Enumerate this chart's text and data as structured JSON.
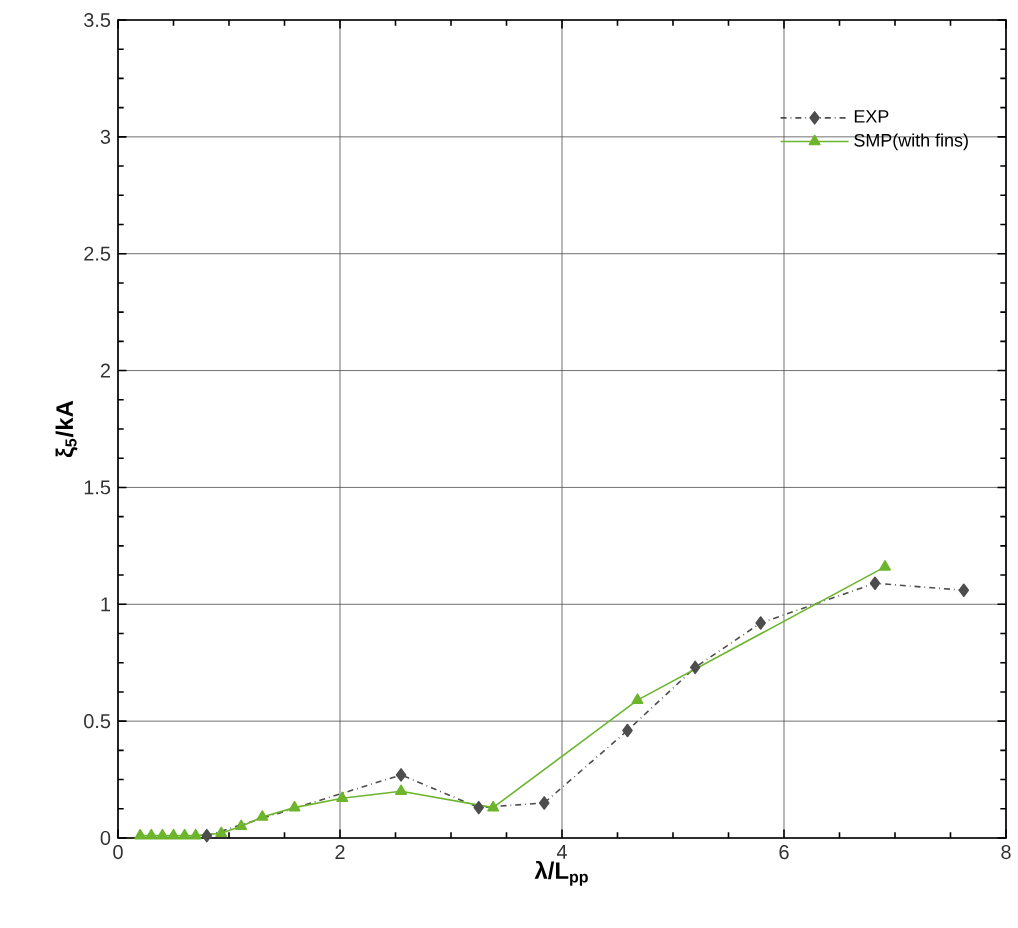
{
  "chart_data": {
    "type": "line",
    "xlabel": "λ/L$_{pp}$",
    "ylabel": "ξ$_{5}$/kA",
    "xlim": [
      0,
      8
    ],
    "xticks": [
      0,
      2,
      4,
      6,
      8
    ],
    "ylim": [
      0,
      3.5
    ],
    "yticks": [
      0,
      0.5,
      1,
      1.5,
      2,
      2.5,
      3,
      3.5
    ],
    "grid": true,
    "legend": "top right",
    "series": [
      {
        "name": "EXP",
        "color": "#4d4d4d",
        "marker": "diamond",
        "line_style": "dashdot",
        "x": [
          0.8,
          2.55,
          3.25,
          3.84,
          4.59,
          5.2,
          5.79,
          6.82,
          7.62
        ],
        "values": [
          0.01,
          0.27,
          0.13,
          0.15,
          0.46,
          0.73,
          0.92,
          1.09,
          1.06
        ]
      },
      {
        "name": "SMP(with fins)",
        "color": "#6cb52d",
        "marker": "triangle",
        "line_style": "solid",
        "x": [
          0.2,
          0.3,
          0.4,
          0.5,
          0.6,
          0.7,
          0.93,
          1.11,
          1.3,
          1.59,
          2.02,
          2.55,
          3.38,
          4.68,
          6.91
        ],
        "values": [
          0.01,
          0.01,
          0.01,
          0.01,
          0.01,
          0.01,
          0.02,
          0.05,
          0.09,
          0.13,
          0.17,
          0.2,
          0.13,
          0.59,
          1.16
        ]
      }
    ]
  }
}
